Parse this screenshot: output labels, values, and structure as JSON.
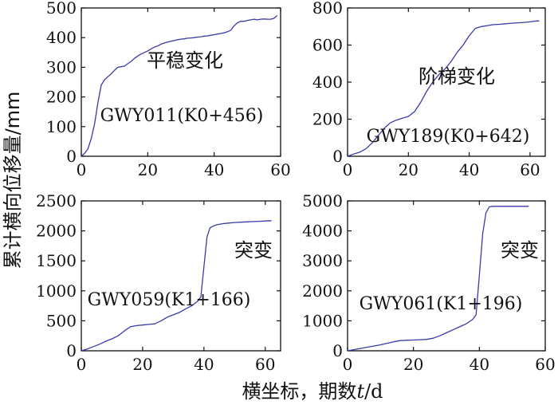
{
  "ylabel": "累计横向位移量/mm",
  "xlabel_parts": [
    "横坐标，期数",
    "t",
    "/d"
  ],
  "series_color": "#3a3aa8",
  "chart_data": [
    {
      "type": "line",
      "annotation": "平稳变化",
      "label": "GWY011(K0+456)",
      "xlim": [
        0,
        60
      ],
      "ylim": [
        0,
        500
      ],
      "xticks": [
        0,
        20,
        40,
        60
      ],
      "yticks": [
        0,
        100,
        200,
        300,
        400,
        500
      ],
      "x": [
        0,
        1,
        2,
        3,
        4,
        5,
        6,
        7,
        8,
        9,
        10,
        11,
        12,
        13,
        14,
        15,
        16,
        17,
        18,
        19,
        20,
        21,
        22,
        23,
        24,
        25,
        26,
        27,
        28,
        29,
        30,
        31,
        32,
        33,
        34,
        35,
        36,
        37,
        38,
        39,
        40,
        41,
        42,
        43,
        44,
        45,
        46,
        47,
        48,
        49,
        50,
        51,
        52,
        53,
        54,
        55,
        56,
        57,
        58,
        59
      ],
      "y": [
        0,
        10,
        25,
        60,
        110,
        180,
        240,
        258,
        268,
        278,
        290,
        300,
        302,
        304,
        312,
        320,
        330,
        338,
        345,
        350,
        355,
        362,
        368,
        372,
        378,
        382,
        385,
        388,
        390,
        393,
        395,
        396,
        398,
        399,
        400,
        402,
        403,
        405,
        406,
        408,
        410,
        412,
        414,
        416,
        420,
        425,
        440,
        450,
        455,
        455,
        458,
        460,
        462,
        460,
        462,
        463,
        462,
        462,
        465,
        475
      ]
    },
    {
      "type": "line",
      "annotation": "阶梯变化",
      "label": "GWY189(K0+642)",
      "xlim": [
        0,
        65
      ],
      "ylim": [
        0,
        800
      ],
      "xticks": [
        0,
        20,
        40,
        60
      ],
      "yticks": [
        0,
        200,
        400,
        600,
        800
      ],
      "x": [
        0,
        2,
        4,
        6,
        8,
        10,
        12,
        14,
        16,
        18,
        20,
        22,
        24,
        26,
        28,
        30,
        32,
        34,
        36,
        38,
        40,
        42,
        44,
        46,
        48,
        50,
        52,
        54,
        56,
        58,
        60,
        62,
        63
      ],
      "y": [
        0,
        12,
        22,
        40,
        70,
        110,
        150,
        180,
        195,
        205,
        215,
        240,
        290,
        350,
        400,
        440,
        470,
        510,
        560,
        600,
        650,
        690,
        700,
        705,
        710,
        712,
        715,
        718,
        720,
        722,
        725,
        730,
        730
      ]
    },
    {
      "type": "line",
      "annotation": "突变",
      "label": "GWY059(K1+166)",
      "xlim": [
        0,
        65
      ],
      "ylim": [
        0,
        2500
      ],
      "xticks": [
        0,
        20,
        40,
        60
      ],
      "yticks": [
        0,
        500,
        1000,
        1500,
        2000,
        2500
      ],
      "x": [
        0,
        2,
        4,
        6,
        8,
        10,
        12,
        14,
        16,
        18,
        20,
        22,
        24,
        26,
        28,
        30,
        32,
        34,
        36,
        38,
        39,
        40,
        41,
        42,
        43,
        44,
        46,
        48,
        50,
        52,
        54,
        56,
        58,
        60,
        62
      ],
      "y": [
        0,
        30,
        70,
        110,
        160,
        200,
        250,
        330,
        400,
        420,
        430,
        440,
        450,
        500,
        560,
        600,
        640,
        700,
        750,
        830,
        900,
        1400,
        1900,
        2050,
        2080,
        2100,
        2120,
        2130,
        2140,
        2145,
        2150,
        2155,
        2160,
        2165,
        2170
      ]
    },
    {
      "type": "line",
      "annotation": "突变",
      "label": "GWY061(K1+196)",
      "xlim": [
        0,
        60
      ],
      "ylim": [
        0,
        5000
      ],
      "xticks": [
        0,
        20,
        40,
        60
      ],
      "yticks": [
        0,
        1000,
        2000,
        3000,
        4000,
        5000
      ],
      "x": [
        0,
        2,
        4,
        6,
        8,
        10,
        12,
        14,
        16,
        18,
        20,
        22,
        24,
        26,
        28,
        30,
        32,
        34,
        36,
        38,
        39,
        40,
        41,
        42,
        43,
        44,
        46,
        48,
        50,
        52,
        54,
        55
      ],
      "y": [
        0,
        40,
        80,
        120,
        160,
        200,
        250,
        300,
        340,
        350,
        360,
        370,
        380,
        420,
        500,
        600,
        700,
        800,
        900,
        1050,
        1200,
        2500,
        3900,
        4600,
        4800,
        4820,
        4820,
        4820,
        4820,
        4820,
        4820,
        4820
      ]
    }
  ]
}
